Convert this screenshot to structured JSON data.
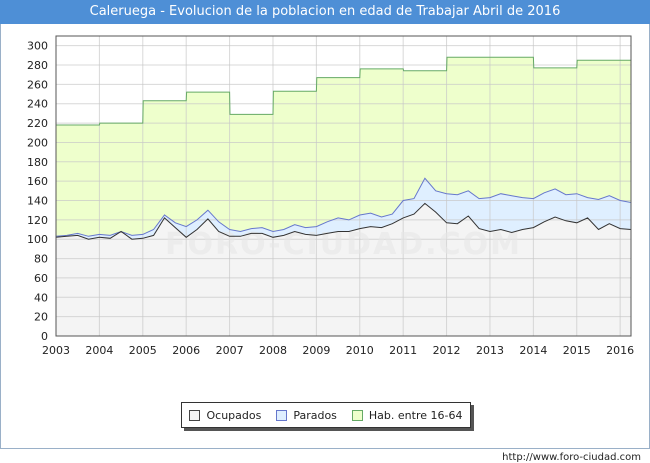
{
  "title": "Caleruega - Evolucion de la poblacion en edad de Trabajar Abril de 2016",
  "watermark": "FORO-CIUDAD.COM",
  "source": "http://www.foro-ciudad.com",
  "chart_data": {
    "type": "area",
    "title": "Caleruega - Evolucion de la poblacion en edad de Trabajar Abril de 2016",
    "xlabel": "",
    "ylabel": "",
    "xlim": [
      2003,
      2016.25
    ],
    "ylim": [
      0,
      310
    ],
    "yticks": [
      0,
      20,
      40,
      60,
      80,
      100,
      120,
      140,
      160,
      180,
      200,
      220,
      240,
      260,
      280,
      300
    ],
    "xticks": [
      2003,
      2004,
      2005,
      2006,
      2007,
      2008,
      2009,
      2010,
      2011,
      2012,
      2013,
      2014,
      2015,
      2016
    ],
    "grid": true,
    "legend_position": "bottom",
    "colors": {
      "ocupados": "#f4f4f4",
      "parados": "#dfefff",
      "hab": "#eeffcc",
      "ocupados_line": "#333333",
      "parados_line": "#6677cc",
      "hab_line": "#66aa66"
    },
    "series": [
      {
        "name": "Hab. entre 16-64",
        "key": "hab",
        "x": [
          2003.0,
          2004.0,
          2004.01,
          2005.0,
          2005.01,
          2006.0,
          2006.01,
          2007.0,
          2007.01,
          2008.0,
          2008.01,
          2009.0,
          2009.01,
          2010.0,
          2010.01,
          2011.0,
          2011.01,
          2012.0,
          2012.01,
          2013.0,
          2013.01,
          2014.0,
          2014.01,
          2015.0,
          2015.01,
          2016.25
        ],
        "y": [
          218,
          218,
          220,
          220,
          243,
          243,
          252,
          252,
          229,
          229,
          253,
          253,
          267,
          267,
          276,
          276,
          274,
          274,
          288,
          288,
          288,
          288,
          277,
          277,
          285,
          285
        ]
      },
      {
        "name": "Parados",
        "key": "parados",
        "x": [
          2003.0,
          2003.25,
          2003.5,
          2003.75,
          2004.0,
          2004.25,
          2004.5,
          2004.75,
          2005.0,
          2005.25,
          2005.5,
          2005.75,
          2006.0,
          2006.25,
          2006.5,
          2006.75,
          2007.0,
          2007.25,
          2007.5,
          2007.75,
          2008.0,
          2008.25,
          2008.5,
          2008.75,
          2009.0,
          2009.25,
          2009.5,
          2009.75,
          2010.0,
          2010.25,
          2010.5,
          2010.75,
          2011.0,
          2011.25,
          2011.5,
          2011.75,
          2012.0,
          2012.25,
          2012.5,
          2012.75,
          2013.0,
          2013.25,
          2013.5,
          2013.75,
          2014.0,
          2014.25,
          2014.5,
          2014.75,
          2015.0,
          2015.25,
          2015.5,
          2015.75,
          2016.0,
          2016.25
        ],
        "y": [
          103,
          104,
          106,
          103,
          105,
          104,
          108,
          104,
          105,
          110,
          125,
          117,
          113,
          120,
          130,
          118,
          110,
          108,
          111,
          112,
          108,
          110,
          115,
          112,
          113,
          118,
          122,
          120,
          125,
          127,
          123,
          126,
          140,
          142,
          163,
          150,
          147,
          146,
          150,
          142,
          143,
          147,
          145,
          143,
          142,
          148,
          152,
          146,
          147,
          143,
          141,
          145,
          140,
          138
        ]
      },
      {
        "name": "Ocupados",
        "key": "ocupados",
        "x": [
          2003.0,
          2003.25,
          2003.5,
          2003.75,
          2004.0,
          2004.25,
          2004.5,
          2004.75,
          2005.0,
          2005.25,
          2005.5,
          2005.75,
          2006.0,
          2006.25,
          2006.5,
          2006.75,
          2007.0,
          2007.25,
          2007.5,
          2007.75,
          2008.0,
          2008.25,
          2008.5,
          2008.75,
          2009.0,
          2009.25,
          2009.5,
          2009.75,
          2010.0,
          2010.25,
          2010.5,
          2010.75,
          2011.0,
          2011.25,
          2011.5,
          2011.75,
          2012.0,
          2012.25,
          2012.5,
          2012.75,
          2013.0,
          2013.25,
          2013.5,
          2013.75,
          2014.0,
          2014.25,
          2014.5,
          2014.75,
          2015.0,
          2015.25,
          2015.5,
          2015.75,
          2016.0,
          2016.25
        ],
        "y": [
          102,
          103,
          104,
          100,
          102,
          101,
          108,
          100,
          101,
          104,
          122,
          112,
          102,
          110,
          121,
          108,
          103,
          103,
          106,
          106,
          102,
          104,
          108,
          105,
          104,
          106,
          108,
          108,
          111,
          113,
          112,
          116,
          122,
          126,
          137,
          128,
          117,
          116,
          124,
          111,
          108,
          110,
          107,
          110,
          112,
          118,
          123,
          119,
          117,
          122,
          110,
          116,
          111,
          110
        ]
      }
    ]
  }
}
